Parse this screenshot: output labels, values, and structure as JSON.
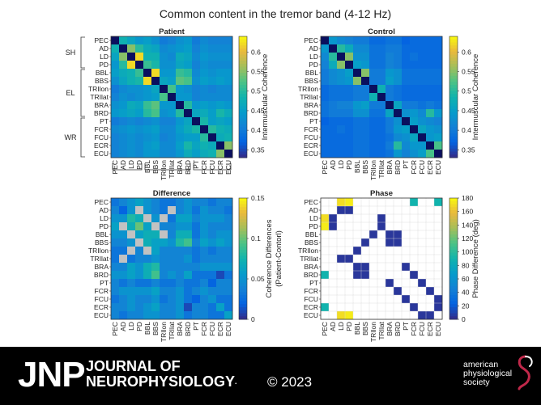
{
  "figure": {
    "title": "Common content in the tremor band (4-12 Hz)"
  },
  "muscles": [
    "PEC",
    "AD",
    "LD",
    "PD",
    "BBL",
    "BBS",
    "TRIlon",
    "TRIlat",
    "BRA",
    "BRD",
    "PT",
    "FCR",
    "FCU",
    "ECR",
    "ECU"
  ],
  "groups": [
    "SH",
    "EL",
    "WR"
  ],
  "chart_data": [
    {
      "type": "heatmap",
      "title": "Patient",
      "colorbar_label": "Intermuscular Coherence",
      "colorbar_ticks": [
        "0.6",
        "0.55",
        "0.5",
        "0.45",
        "0.4",
        "0.35"
      ],
      "clim": [
        0.33,
        0.64
      ],
      "values": [
        [
          null,
          0.48,
          0.46,
          0.44,
          0.45,
          0.43,
          0.4,
          0.41,
          0.43,
          0.44,
          0.4,
          0.42,
          0.41,
          0.41,
          0.41
        ],
        [
          0.48,
          null,
          0.55,
          0.5,
          0.47,
          0.46,
          0.42,
          0.43,
          0.44,
          0.45,
          0.41,
          0.43,
          0.42,
          0.42,
          0.42
        ],
        [
          0.46,
          0.55,
          null,
          0.62,
          0.48,
          0.48,
          0.43,
          0.42,
          0.47,
          0.46,
          0.42,
          0.44,
          0.43,
          0.43,
          0.43
        ],
        [
          0.44,
          0.5,
          0.62,
          null,
          0.51,
          0.49,
          0.43,
          0.43,
          0.46,
          0.45,
          0.41,
          0.43,
          0.42,
          0.42,
          0.42
        ],
        [
          0.45,
          0.47,
          0.48,
          0.51,
          null,
          0.62,
          0.44,
          0.44,
          0.51,
          0.5,
          0.42,
          0.44,
          0.43,
          0.44,
          0.44
        ],
        [
          0.43,
          0.46,
          0.48,
          0.49,
          0.62,
          null,
          0.46,
          0.45,
          0.53,
          0.52,
          0.43,
          0.45,
          0.44,
          0.45,
          0.44
        ],
        [
          0.4,
          0.42,
          0.43,
          0.43,
          0.44,
          0.46,
          null,
          0.52,
          0.44,
          0.43,
          0.41,
          0.42,
          0.41,
          0.42,
          0.42
        ],
        [
          0.41,
          0.43,
          0.42,
          0.43,
          0.44,
          0.45,
          0.52,
          null,
          0.44,
          0.44,
          0.41,
          0.42,
          0.42,
          0.42,
          0.42
        ],
        [
          0.43,
          0.44,
          0.47,
          0.46,
          0.51,
          0.53,
          0.44,
          0.44,
          null,
          0.5,
          0.44,
          0.45,
          0.44,
          0.45,
          0.44
        ],
        [
          0.44,
          0.45,
          0.46,
          0.45,
          0.5,
          0.52,
          0.43,
          0.44,
          0.5,
          null,
          0.46,
          0.47,
          0.45,
          0.49,
          0.47
        ],
        [
          0.4,
          0.41,
          0.42,
          0.41,
          0.42,
          0.43,
          0.41,
          0.41,
          0.44,
          0.46,
          null,
          0.49,
          0.45,
          0.46,
          0.45
        ],
        [
          0.42,
          0.43,
          0.44,
          0.43,
          0.44,
          0.45,
          0.42,
          0.42,
          0.45,
          0.47,
          0.49,
          null,
          0.5,
          0.48,
          0.47
        ],
        [
          0.41,
          0.42,
          0.43,
          0.42,
          0.43,
          0.44,
          0.41,
          0.42,
          0.44,
          0.45,
          0.45,
          0.5,
          null,
          0.47,
          0.48
        ],
        [
          0.41,
          0.42,
          0.43,
          0.42,
          0.44,
          0.45,
          0.42,
          0.42,
          0.45,
          0.49,
          0.46,
          0.48,
          0.47,
          null,
          0.55
        ],
        [
          0.41,
          0.42,
          0.43,
          0.42,
          0.44,
          0.44,
          0.42,
          0.42,
          0.44,
          0.47,
          0.45,
          0.47,
          0.48,
          0.55,
          null
        ]
      ]
    },
    {
      "type": "heatmap",
      "title": "Control",
      "colorbar_label": "Intermuscular Coherence",
      "colorbar_ticks": [
        "0.6",
        "0.55",
        "0.5",
        "0.45",
        "0.4",
        "0.35"
      ],
      "clim": [
        0.33,
        0.64
      ],
      "values": [
        [
          null,
          0.44,
          0.42,
          0.41,
          0.4,
          0.4,
          0.38,
          0.38,
          0.39,
          0.39,
          0.37,
          0.38,
          0.38,
          0.38,
          0.38
        ],
        [
          0.44,
          null,
          0.5,
          0.47,
          0.42,
          0.42,
          0.39,
          0.39,
          0.4,
          0.4,
          0.38,
          0.38,
          0.38,
          0.38,
          0.38
        ],
        [
          0.42,
          0.5,
          null,
          0.55,
          0.43,
          0.43,
          0.39,
          0.39,
          0.41,
          0.4,
          0.38,
          0.39,
          0.38,
          0.38,
          0.38
        ],
        [
          0.41,
          0.47,
          0.55,
          null,
          0.45,
          0.44,
          0.39,
          0.39,
          0.41,
          0.4,
          0.38,
          0.38,
          0.38,
          0.38,
          0.38
        ],
        [
          0.4,
          0.42,
          0.43,
          0.45,
          null,
          0.55,
          0.4,
          0.4,
          0.44,
          0.43,
          0.39,
          0.39,
          0.39,
          0.39,
          0.39
        ],
        [
          0.4,
          0.42,
          0.43,
          0.44,
          0.55,
          null,
          0.4,
          0.4,
          0.45,
          0.43,
          0.39,
          0.39,
          0.39,
          0.39,
          0.39
        ],
        [
          0.38,
          0.39,
          0.39,
          0.39,
          0.4,
          0.4,
          null,
          0.48,
          0.4,
          0.39,
          0.38,
          0.38,
          0.38,
          0.38,
          0.38
        ],
        [
          0.38,
          0.39,
          0.39,
          0.39,
          0.4,
          0.4,
          0.48,
          null,
          0.4,
          0.39,
          0.38,
          0.38,
          0.38,
          0.38,
          0.38
        ],
        [
          0.39,
          0.4,
          0.41,
          0.41,
          0.44,
          0.45,
          0.4,
          0.4,
          null,
          0.46,
          0.4,
          0.4,
          0.39,
          0.4,
          0.39
        ],
        [
          0.39,
          0.4,
          0.4,
          0.4,
          0.43,
          0.43,
          0.39,
          0.39,
          0.46,
          null,
          0.43,
          0.44,
          0.42,
          0.5,
          0.44
        ],
        [
          0.37,
          0.38,
          0.38,
          0.38,
          0.39,
          0.39,
          0.38,
          0.38,
          0.4,
          0.43,
          null,
          0.45,
          0.43,
          0.42,
          0.41
        ],
        [
          0.38,
          0.38,
          0.39,
          0.38,
          0.39,
          0.39,
          0.38,
          0.38,
          0.4,
          0.44,
          0.45,
          null,
          0.46,
          0.44,
          0.43
        ],
        [
          0.38,
          0.38,
          0.38,
          0.38,
          0.39,
          0.39,
          0.38,
          0.38,
          0.39,
          0.42,
          0.43,
          0.46,
          null,
          0.44,
          0.45
        ],
        [
          0.38,
          0.38,
          0.38,
          0.38,
          0.39,
          0.39,
          0.38,
          0.38,
          0.4,
          0.5,
          0.42,
          0.44,
          0.44,
          null,
          0.52
        ],
        [
          0.38,
          0.38,
          0.38,
          0.38,
          0.39,
          0.39,
          0.38,
          0.38,
          0.39,
          0.44,
          0.41,
          0.43,
          0.45,
          0.52,
          null
        ]
      ]
    },
    {
      "type": "heatmap",
      "title": "Difference",
      "colorbar_label": "Coherence Differences (Patient-Contorl)",
      "colorbar_ticks": [
        "0.15",
        "0.1",
        "0.05",
        "0"
      ],
      "clim": [
        0,
        0.15
      ],
      "values": [
        [
          0.03,
          0.04,
          0.05,
          0.06,
          0.05,
          0.04,
          0.03,
          0.03,
          0.04,
          0.05,
          0.04,
          0.04,
          0.03,
          0.04,
          0.04
        ],
        [
          0.04,
          0.02,
          0.05,
          null,
          0.05,
          0.04,
          0.03,
          null,
          0.04,
          0.05,
          0.03,
          0.05,
          0.04,
          0.04,
          0.03
        ],
        [
          0.05,
          0.05,
          0.08,
          0.07,
          null,
          0.05,
          null,
          0.03,
          0.06,
          0.06,
          0.04,
          0.05,
          0.05,
          0.05,
          0.04
        ],
        [
          0.06,
          null,
          0.07,
          0.1,
          0.06,
          null,
          0.04,
          0.04,
          0.05,
          0.05,
          0.03,
          0.05,
          0.04,
          0.04,
          0.04
        ],
        [
          0.05,
          0.05,
          null,
          0.06,
          0.07,
          0.07,
          null,
          0.04,
          0.07,
          0.07,
          0.03,
          0.05,
          0.04,
          0.05,
          0.05
        ],
        [
          0.04,
          0.04,
          0.05,
          null,
          0.07,
          0.06,
          0.06,
          0.05,
          0.08,
          0.09,
          0.04,
          0.06,
          0.05,
          0.06,
          0.05
        ],
        [
          0.03,
          0.03,
          null,
          0.04,
          null,
          0.06,
          0.04,
          0.04,
          0.04,
          0.04,
          0.03,
          0.04,
          0.03,
          0.04,
          0.04
        ],
        [
          0.03,
          null,
          0.03,
          0.04,
          0.04,
          0.05,
          0.04,
          0.04,
          0.04,
          0.05,
          0.03,
          0.04,
          0.04,
          0.04,
          0.04
        ],
        [
          0.04,
          0.04,
          0.06,
          0.05,
          0.07,
          0.08,
          0.04,
          0.04,
          0.04,
          0.04,
          0.04,
          0.05,
          0.05,
          0.05,
          0.05
        ],
        [
          0.05,
          0.05,
          0.06,
          0.05,
          0.07,
          0.09,
          0.04,
          0.05,
          0.04,
          0.06,
          0.03,
          0.03,
          0.03,
          0.01,
          0.03
        ],
        [
          0.04,
          0.03,
          0.04,
          0.03,
          0.03,
          0.04,
          0.03,
          0.03,
          0.04,
          0.03,
          0.03,
          0.04,
          0.02,
          0.04,
          0.04
        ],
        [
          0.04,
          0.05,
          0.05,
          0.05,
          0.05,
          0.06,
          0.04,
          0.04,
          0.05,
          0.03,
          0.04,
          0.05,
          0.04,
          0.04,
          0.04
        ],
        [
          0.03,
          0.04,
          0.05,
          0.04,
          0.04,
          0.05,
          0.03,
          0.04,
          0.05,
          0.03,
          0.02,
          0.04,
          0.05,
          0.03,
          0.03
        ],
        [
          0.04,
          0.04,
          0.05,
          0.04,
          0.05,
          0.06,
          0.04,
          0.04,
          0.05,
          0.01,
          0.04,
          0.04,
          0.03,
          0.06,
          0.03
        ],
        [
          0.04,
          0.03,
          0.04,
          0.04,
          0.05,
          0.05,
          0.04,
          0.04,
          0.05,
          0.03,
          0.04,
          0.04,
          0.03,
          0.03,
          0.06
        ]
      ]
    },
    {
      "type": "heatmap",
      "title": "Phase",
      "colorbar_label": "Phase Difference (deg)",
      "colorbar_ticks": [
        "180",
        "160",
        "140",
        "120",
        "100",
        "80",
        "60",
        "40",
        "20",
        "0"
      ],
      "clim": [
        0,
        180
      ],
      "values": [
        [
          null,
          null,
          170,
          175,
          null,
          null,
          null,
          null,
          null,
          null,
          null,
          90,
          null,
          null,
          90
        ],
        [
          null,
          null,
          5,
          5,
          null,
          null,
          null,
          null,
          null,
          null,
          null,
          null,
          null,
          null,
          null
        ],
        [
          170,
          5,
          null,
          null,
          null,
          null,
          null,
          5,
          null,
          null,
          null,
          null,
          null,
          null,
          null
        ],
        [
          175,
          5,
          null,
          null,
          null,
          null,
          null,
          5,
          null,
          null,
          null,
          null,
          null,
          null,
          null
        ],
        [
          null,
          null,
          null,
          null,
          null,
          null,
          5,
          null,
          5,
          5,
          null,
          null,
          null,
          null,
          null
        ],
        [
          null,
          null,
          null,
          null,
          null,
          5,
          null,
          null,
          5,
          5,
          null,
          null,
          null,
          null,
          null
        ],
        [
          null,
          null,
          null,
          null,
          5,
          null,
          null,
          null,
          null,
          null,
          null,
          null,
          null,
          null,
          null
        ],
        [
          null,
          null,
          5,
          5,
          null,
          null,
          null,
          null,
          null,
          null,
          null,
          null,
          null,
          null,
          null
        ],
        [
          null,
          null,
          null,
          null,
          5,
          5,
          null,
          null,
          null,
          null,
          5,
          null,
          null,
          null,
          null
        ],
        [
          90,
          null,
          null,
          null,
          5,
          5,
          null,
          null,
          null,
          null,
          null,
          5,
          null,
          null,
          null
        ],
        [
          null,
          null,
          null,
          null,
          null,
          null,
          null,
          null,
          5,
          null,
          null,
          null,
          5,
          null,
          null
        ],
        [
          null,
          null,
          null,
          null,
          null,
          null,
          null,
          null,
          null,
          5,
          null,
          null,
          null,
          5,
          null
        ],
        [
          null,
          null,
          null,
          null,
          null,
          null,
          null,
          null,
          null,
          null,
          5,
          null,
          null,
          null,
          5
        ],
        [
          90,
          null,
          null,
          null,
          null,
          null,
          null,
          null,
          null,
          null,
          null,
          5,
          null,
          null,
          5
        ],
        [
          null,
          null,
          170,
          175,
          null,
          null,
          null,
          null,
          null,
          null,
          null,
          null,
          5,
          5,
          null
        ]
      ]
    }
  ],
  "footer": {
    "logo_text": "JNP",
    "journal_line1": "JOURNAL OF",
    "journal_line2": "NEUROPHYSIOLOGY",
    "trademark": ".",
    "copyright": "© 2023",
    "society_line1": "american",
    "society_line2": "physiological",
    "society_line3": "society"
  }
}
